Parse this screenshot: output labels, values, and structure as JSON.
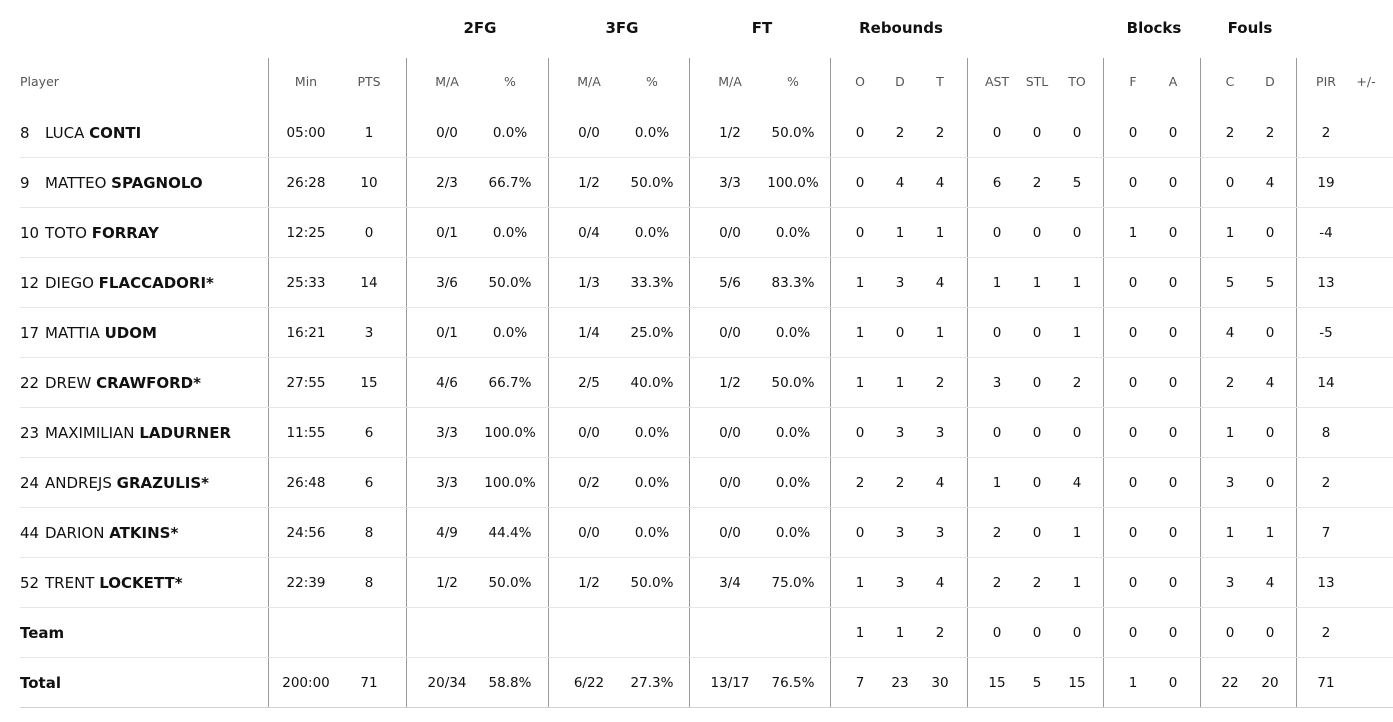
{
  "groups": [
    {
      "label": "2FG",
      "x": 480
    },
    {
      "label": "3FG",
      "x": 622
    },
    {
      "label": "FT",
      "x": 762
    },
    {
      "label": "Rebounds",
      "x": 901
    },
    {
      "label": "Blocks",
      "x": 1154
    },
    {
      "label": "Fouls",
      "x": 1250
    }
  ],
  "subheaders": {
    "player": "Player",
    "min": "Min",
    "pts": "PTS",
    "fg2_ma": "M/A",
    "fg2_pct": "%",
    "fg3_ma": "M/A",
    "fg3_pct": "%",
    "ft_ma": "M/A",
    "ft_pct": "%",
    "reb_o": "O",
    "reb_d": "D",
    "reb_t": "T",
    "ast": "AST",
    "stl": "STL",
    "to": "TO",
    "blk_f": "F",
    "blk_a": "A",
    "foul_c": "C",
    "foul_d": "D",
    "pir": "PIR",
    "pm": "+/-"
  },
  "players": [
    {
      "num": "8",
      "first": "LUCA",
      "last": "CONTI",
      "star": "",
      "min": "05:00",
      "pts": "1",
      "fg2_ma": "0/0",
      "fg2_pct": "0.0%",
      "fg3_ma": "0/0",
      "fg3_pct": "0.0%",
      "ft_ma": "1/2",
      "ft_pct": "50.0%",
      "reb_o": "0",
      "reb_d": "2",
      "reb_t": "2",
      "ast": "0",
      "stl": "0",
      "to": "0",
      "blk_f": "0",
      "blk_a": "0",
      "foul_c": "2",
      "foul_d": "2",
      "pir": "2",
      "pm": ""
    },
    {
      "num": "9",
      "first": "MATTEO",
      "last": "SPAGNOLO",
      "star": "",
      "min": "26:28",
      "pts": "10",
      "fg2_ma": "2/3",
      "fg2_pct": "66.7%",
      "fg3_ma": "1/2",
      "fg3_pct": "50.0%",
      "ft_ma": "3/3",
      "ft_pct": "100.0%",
      "reb_o": "0",
      "reb_d": "4",
      "reb_t": "4",
      "ast": "6",
      "stl": "2",
      "to": "5",
      "blk_f": "0",
      "blk_a": "0",
      "foul_c": "0",
      "foul_d": "4",
      "pir": "19",
      "pm": ""
    },
    {
      "num": "10",
      "first": "TOTO",
      "last": "FORRAY",
      "star": "",
      "min": "12:25",
      "pts": "0",
      "fg2_ma": "0/1",
      "fg2_pct": "0.0%",
      "fg3_ma": "0/4",
      "fg3_pct": "0.0%",
      "ft_ma": "0/0",
      "ft_pct": "0.0%",
      "reb_o": "0",
      "reb_d": "1",
      "reb_t": "1",
      "ast": "0",
      "stl": "0",
      "to": "0",
      "blk_f": "1",
      "blk_a": "0",
      "foul_c": "1",
      "foul_d": "0",
      "pir": "-4",
      "pm": ""
    },
    {
      "num": "12",
      "first": "DIEGO",
      "last": "FLACCADORI",
      "star": "*",
      "min": "25:33",
      "pts": "14",
      "fg2_ma": "3/6",
      "fg2_pct": "50.0%",
      "fg3_ma": "1/3",
      "fg3_pct": "33.3%",
      "ft_ma": "5/6",
      "ft_pct": "83.3%",
      "reb_o": "1",
      "reb_d": "3",
      "reb_t": "4",
      "ast": "1",
      "stl": "1",
      "to": "1",
      "blk_f": "0",
      "blk_a": "0",
      "foul_c": "5",
      "foul_d": "5",
      "pir": "13",
      "pm": ""
    },
    {
      "num": "17",
      "first": "MATTIA",
      "last": "UDOM",
      "star": "",
      "min": "16:21",
      "pts": "3",
      "fg2_ma": "0/1",
      "fg2_pct": "0.0%",
      "fg3_ma": "1/4",
      "fg3_pct": "25.0%",
      "ft_ma": "0/0",
      "ft_pct": "0.0%",
      "reb_o": "1",
      "reb_d": "0",
      "reb_t": "1",
      "ast": "0",
      "stl": "0",
      "to": "1",
      "blk_f": "0",
      "blk_a": "0",
      "foul_c": "4",
      "foul_d": "0",
      "pir": "-5",
      "pm": ""
    },
    {
      "num": "22",
      "first": "DREW",
      "last": "CRAWFORD",
      "star": "*",
      "min": "27:55",
      "pts": "15",
      "fg2_ma": "4/6",
      "fg2_pct": "66.7%",
      "fg3_ma": "2/5",
      "fg3_pct": "40.0%",
      "ft_ma": "1/2",
      "ft_pct": "50.0%",
      "reb_o": "1",
      "reb_d": "1",
      "reb_t": "2",
      "ast": "3",
      "stl": "0",
      "to": "2",
      "blk_f": "0",
      "blk_a": "0",
      "foul_c": "2",
      "foul_d": "4",
      "pir": "14",
      "pm": ""
    },
    {
      "num": "23",
      "first": "MAXIMILIAN",
      "last": "LADURNER",
      "star": "",
      "min": "11:55",
      "pts": "6",
      "fg2_ma": "3/3",
      "fg2_pct": "100.0%",
      "fg3_ma": "0/0",
      "fg3_pct": "0.0%",
      "ft_ma": "0/0",
      "ft_pct": "0.0%",
      "reb_o": "0",
      "reb_d": "3",
      "reb_t": "3",
      "ast": "0",
      "stl": "0",
      "to": "0",
      "blk_f": "0",
      "blk_a": "0",
      "foul_c": "1",
      "foul_d": "0",
      "pir": "8",
      "pm": ""
    },
    {
      "num": "24",
      "first": "ANDREJS",
      "last": "GRAZULIS",
      "star": "*",
      "min": "26:48",
      "pts": "6",
      "fg2_ma": "3/3",
      "fg2_pct": "100.0%",
      "fg3_ma": "0/2",
      "fg3_pct": "0.0%",
      "ft_ma": "0/0",
      "ft_pct": "0.0%",
      "reb_o": "2",
      "reb_d": "2",
      "reb_t": "4",
      "ast": "1",
      "stl": "0",
      "to": "4",
      "blk_f": "0",
      "blk_a": "0",
      "foul_c": "3",
      "foul_d": "0",
      "pir": "2",
      "pm": ""
    },
    {
      "num": "44",
      "first": "DARION",
      "last": "ATKINS",
      "star": "*",
      "min": "24:56",
      "pts": "8",
      "fg2_ma": "4/9",
      "fg2_pct": "44.4%",
      "fg3_ma": "0/0",
      "fg3_pct": "0.0%",
      "ft_ma": "0/0",
      "ft_pct": "0.0%",
      "reb_o": "0",
      "reb_d": "3",
      "reb_t": "3",
      "ast": "2",
      "stl": "0",
      "to": "1",
      "blk_f": "0",
      "blk_a": "0",
      "foul_c": "1",
      "foul_d": "1",
      "pir": "7",
      "pm": ""
    },
    {
      "num": "52",
      "first": "TRENT",
      "last": "LOCKETT",
      "star": "*",
      "min": "22:39",
      "pts": "8",
      "fg2_ma": "1/2",
      "fg2_pct": "50.0%",
      "fg3_ma": "1/2",
      "fg3_pct": "50.0%",
      "ft_ma": "3/4",
      "ft_pct": "75.0%",
      "reb_o": "1",
      "reb_d": "3",
      "reb_t": "4",
      "ast": "2",
      "stl": "2",
      "to": "1",
      "blk_f": "0",
      "blk_a": "0",
      "foul_c": "3",
      "foul_d": "4",
      "pir": "13",
      "pm": ""
    }
  ],
  "team": {
    "label": "Team",
    "min": "",
    "pts": "",
    "fg2_ma": "",
    "fg2_pct": "",
    "fg3_ma": "",
    "fg3_pct": "",
    "ft_ma": "",
    "ft_pct": "",
    "reb_o": "1",
    "reb_d": "1",
    "reb_t": "2",
    "ast": "0",
    "stl": "0",
    "to": "0",
    "blk_f": "0",
    "blk_a": "0",
    "foul_c": "0",
    "foul_d": "0",
    "pir": "2",
    "pm": ""
  },
  "total": {
    "label": "Total",
    "min": "200:00",
    "pts": "71",
    "fg2_ma": "20/34",
    "fg2_pct": "58.8%",
    "fg3_ma": "6/22",
    "fg3_pct": "27.3%",
    "ft_ma": "13/17",
    "ft_pct": "76.5%",
    "reb_o": "7",
    "reb_d": "23",
    "reb_t": "30",
    "ast": "15",
    "stl": "5",
    "to": "15",
    "blk_f": "1",
    "blk_a": "0",
    "foul_c": "22",
    "foul_d": "20",
    "pir": "71",
    "pm": ""
  }
}
